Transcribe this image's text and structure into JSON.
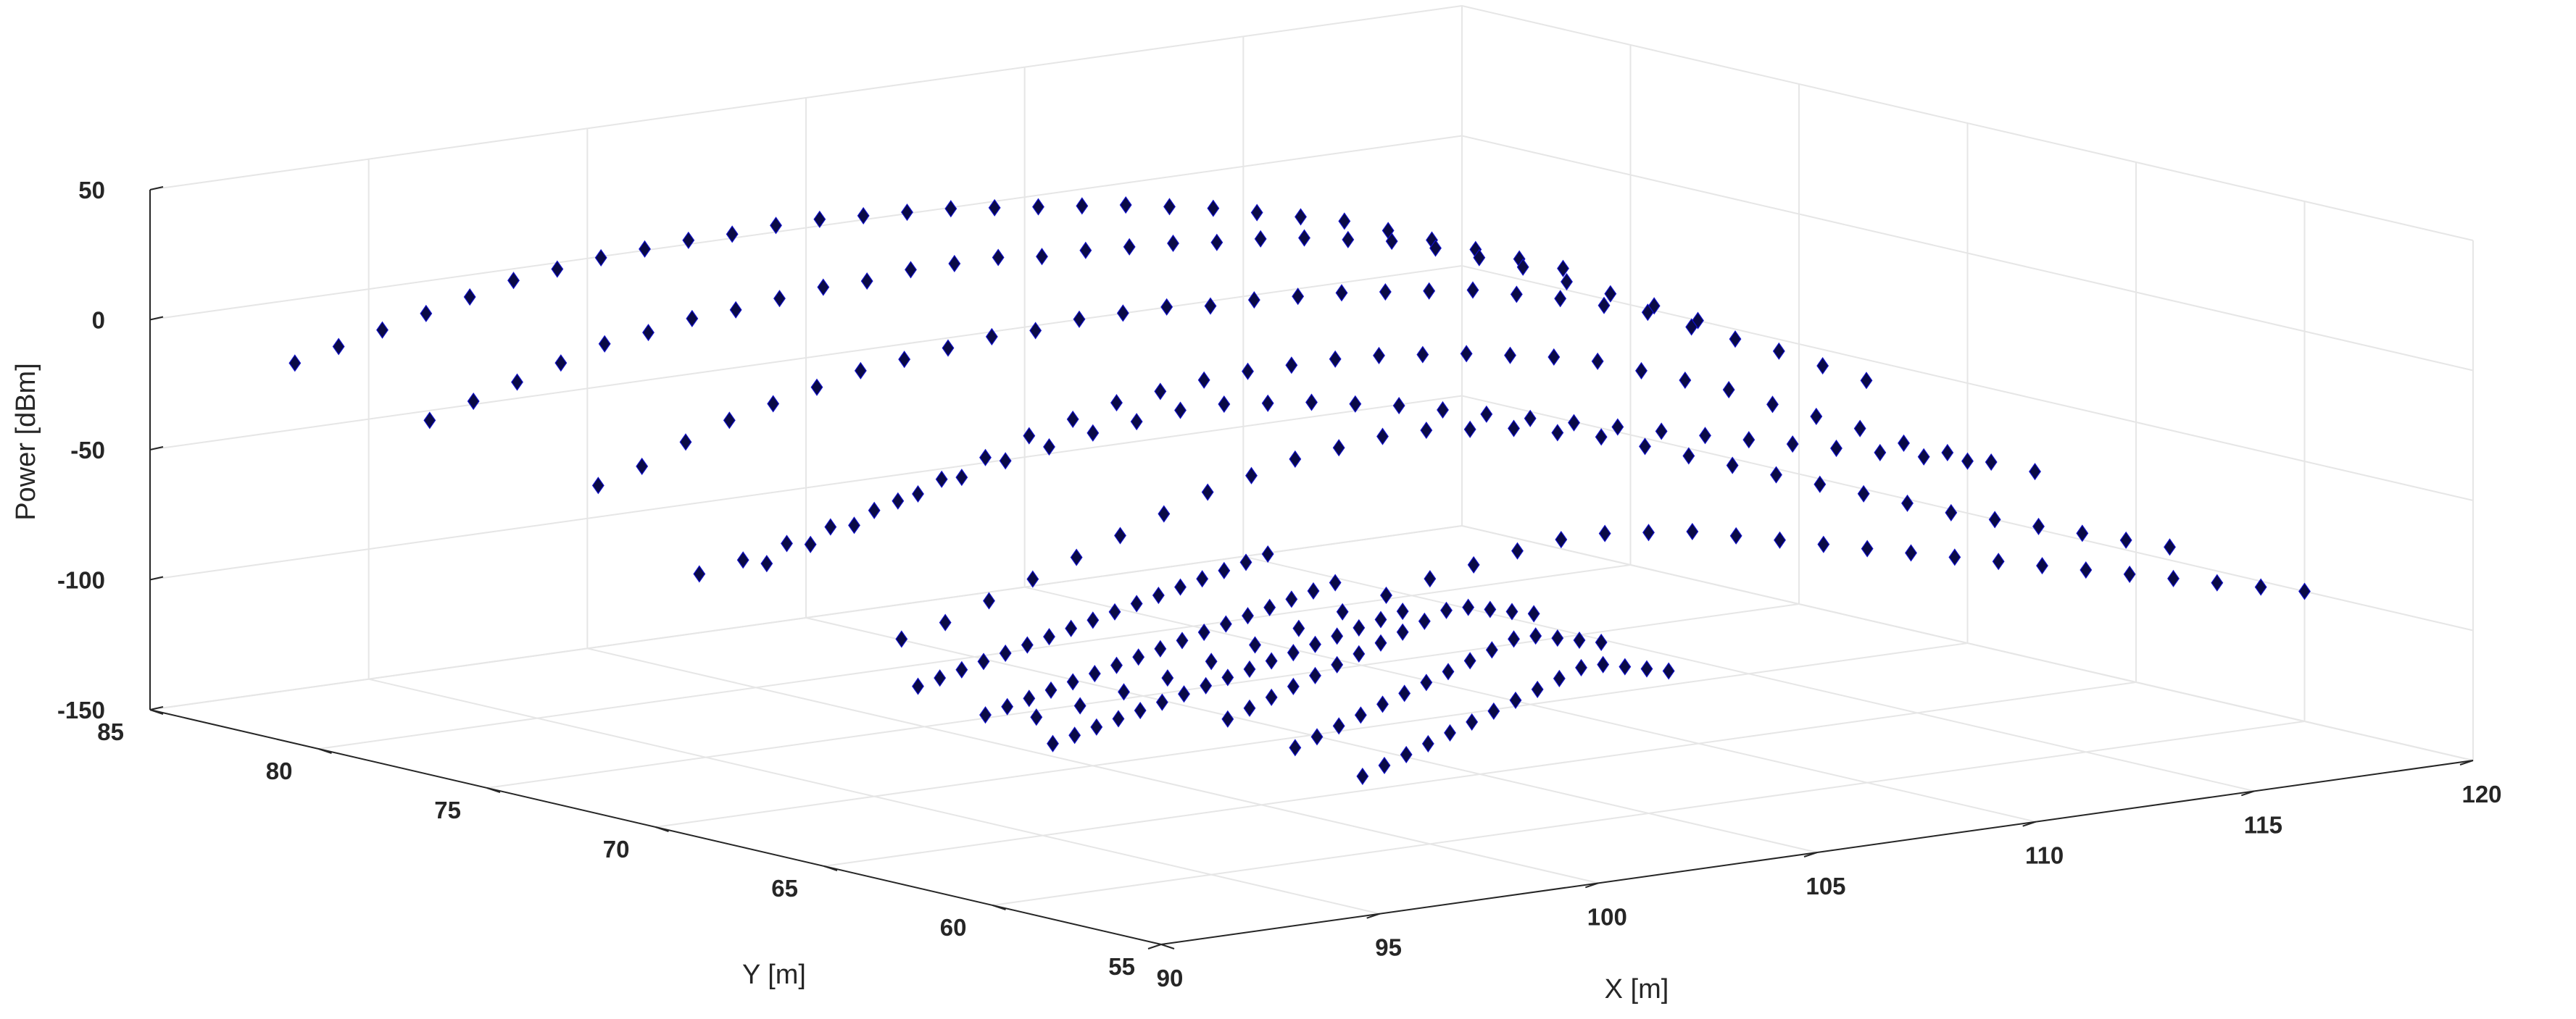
{
  "chart_data": {
    "type": "scatter",
    "projection": "3d",
    "title": "",
    "xlabel": "X [m]",
    "ylabel": "Y [m]",
    "zlabel": "Power [dBm]",
    "xlim": [
      90,
      120
    ],
    "ylim": [
      55,
      85
    ],
    "zlim": [
      -150,
      50
    ],
    "xticks": [
      90,
      95,
      100,
      105,
      110,
      115,
      120
    ],
    "yticks": [
      55,
      60,
      65,
      70,
      75,
      80,
      85
    ],
    "zticks": [
      -150,
      -100,
      -50,
      0,
      50
    ],
    "grid": true,
    "legend": "none",
    "marker": "diamond",
    "marker_color": "#0a0a46",
    "marker_edge_color": "#1010c8",
    "series": [
      {
        "x": [
          91,
          92,
          93,
          94,
          95,
          96,
          97,
          98,
          99,
          100,
          101,
          102,
          103,
          104,
          105,
          106,
          107,
          108,
          109,
          110,
          111,
          112,
          113,
          114,
          115,
          116,
          117,
          118,
          119,
          120,
          91,
          92,
          93,
          94,
          95,
          96,
          97,
          98,
          99,
          100,
          101,
          102,
          103,
          104,
          105,
          106,
          107,
          108,
          109,
          110,
          111,
          112,
          113,
          114,
          115,
          116,
          117,
          118,
          119,
          120,
          91,
          92,
          93,
          94,
          95,
          96,
          97,
          98,
          99,
          100,
          101,
          102,
          103,
          104,
          105,
          106,
          107,
          108,
          109,
          110,
          111,
          112,
          113,
          114,
          115,
          116,
          117,
          118,
          119,
          120,
          91,
          92,
          93,
          94,
          95,
          96,
          97,
          98,
          99,
          100,
          101,
          102,
          103,
          104,
          105,
          106,
          107,
          108,
          109,
          110,
          111,
          112,
          113,
          114,
          115,
          116,
          117,
          118,
          119,
          120,
          91,
          92,
          93,
          94,
          95,
          96,
          97,
          98,
          99,
          100,
          101,
          102,
          103,
          104,
          105,
          106,
          107,
          108,
          109,
          110,
          111,
          112,
          113,
          114,
          115,
          116,
          117,
          118,
          119,
          120,
          91,
          92,
          93,
          94,
          95,
          96,
          97,
          98,
          99,
          100,
          101,
          102,
          103,
          104,
          105,
          106,
          107,
          108,
          109,
          110,
          111,
          112,
          113,
          114,
          115,
          116,
          117,
          118,
          119,
          120,
          91,
          92,
          93,
          94,
          95,
          96,
          97,
          98,
          99,
          100,
          101,
          102,
          103,
          104,
          105,
          106,
          107,
          108,
          109,
          110,
          111,
          112,
          113,
          114,
          115,
          116,
          117,
          118,
          119,
          120,
          96,
          96.5,
          97,
          97.5,
          98,
          98.5,
          99,
          99.5,
          100,
          100.5,
          101,
          101.5,
          102,
          102.5,
          103,
          103.5,
          104,
          96,
          96.5,
          97,
          97.5,
          98,
          98.5,
          99,
          99.5,
          100,
          100.5,
          101,
          101.5,
          102,
          102.5,
          103,
          103.5,
          104,
          96,
          96.5,
          97,
          97.5,
          98,
          98.5,
          99,
          99.5,
          100,
          100.5,
          101,
          101.5,
          102,
          102.5,
          103,
          103.5,
          104,
          100,
          100.5,
          101,
          101.5,
          102,
          102.5,
          103,
          103.5,
          104,
          104.5,
          105,
          105.5,
          106,
          106.5,
          107,
          100,
          100.5,
          101,
          101.5,
          102,
          102.5,
          103,
          103.5,
          104,
          104.5,
          105,
          105.5,
          106,
          106.5,
          107,
          100,
          100.5,
          101,
          101.5,
          102,
          102.5,
          103,
          103.5,
          104,
          104.5,
          105,
          105.5,
          106,
          106.5,
          107
        ],
        "y": [
          78,
          78,
          78,
          78,
          78,
          78,
          78,
          78,
          78,
          78,
          78,
          78,
          78,
          78,
          78,
          78,
          78,
          78,
          78,
          78,
          78,
          78,
          78,
          78,
          78,
          78,
          78,
          78,
          78,
          78,
          73,
          73,
          73,
          73,
          73,
          73,
          73,
          73,
          73,
          73,
          73,
          73,
          73,
          73,
          73,
          73,
          73,
          73,
          73,
          73,
          73,
          73,
          73,
          73,
          73,
          73,
          73,
          73,
          73,
          73,
          68,
          68,
          68,
          68,
          68,
          68,
          68,
          68,
          68,
          68,
          68,
          68,
          68,
          68,
          68,
          68,
          68,
          68,
          68,
          68,
          68,
          68,
          68,
          68,
          68,
          68,
          68,
          68,
          68,
          68,
          64,
          64,
          64,
          64,
          64,
          64,
          64,
          64,
          64,
          64,
          64,
          64,
          64,
          64,
          64,
          64,
          64,
          64,
          64,
          64,
          64,
          64,
          64,
          64,
          64,
          64,
          64,
          64,
          64,
          64,
          82,
          82,
          82,
          82,
          82,
          82,
          82,
          82,
          82,
          82,
          82,
          82,
          82,
          82,
          82,
          82,
          82,
          82,
          82,
          82,
          82,
          82,
          82,
          82,
          82,
          82,
          82,
          82,
          82,
          82,
          70,
          70,
          70,
          70,
          70,
          70,
          70,
          70,
          70,
          70,
          70,
          70,
          70,
          70,
          70,
          70,
          70,
          70,
          70,
          70,
          70,
          70,
          70,
          70,
          70,
          70,
          70,
          70,
          70,
          70,
          60,
          60,
          60,
          60,
          60,
          60,
          60,
          60,
          60,
          60,
          60,
          60,
          60,
          60,
          60,
          60,
          60,
          60,
          60,
          60,
          60,
          60,
          60,
          60,
          60,
          60,
          60,
          60,
          60,
          60,
          70,
          70,
          70,
          70,
          70,
          70,
          70,
          70,
          70,
          70,
          70,
          70,
          70,
          70,
          70,
          70,
          70,
          68,
          68,
          68,
          68,
          68,
          68,
          68,
          68,
          68,
          68,
          68,
          68,
          68,
          68,
          68,
          68,
          68,
          66,
          66,
          66,
          66,
          66,
          66,
          66,
          66,
          66,
          66,
          66,
          66,
          66,
          66,
          66,
          66,
          66,
          66,
          66,
          66,
          66,
          66,
          66,
          66,
          66,
          66,
          66,
          66,
          66,
          66,
          66,
          66,
          64,
          64,
          64,
          64,
          64,
          64,
          64,
          64,
          64,
          64,
          64,
          64,
          64,
          64,
          64,
          62,
          62,
          62,
          62,
          62,
          62,
          62,
          62,
          62,
          62,
          62,
          62,
          62,
          62,
          62
        ],
        "z": [
          -20,
          -15,
          -10,
          -5,
          0,
          2,
          5,
          6,
          8,
          10,
          10,
          12,
          12,
          12,
          10,
          10,
          9,
          8,
          6,
          5,
          3,
          0,
          -3,
          -8,
          -14,
          -20,
          -28,
          -35,
          -42,
          -50,
          -30,
          -25,
          -18,
          -12,
          -8,
          -4,
          0,
          2,
          4,
          6,
          6,
          8,
          8,
          8,
          6,
          6,
          5,
          4,
          2,
          0,
          -2,
          -6,
          -10,
          -15,
          -20,
          -28,
          -35,
          -42,
          -50,
          -58,
          -45,
          -40,
          -35,
          -28,
          -22,
          -16,
          -10,
          -6,
          -2,
          0,
          2,
          3,
          3,
          3,
          2,
          0,
          -2,
          -5,
          -8,
          -12,
          -18,
          -24,
          -30,
          -38,
          -45,
          -52,
          -60,
          -66,
          -72,
          -78,
          -62,
          -58,
          -52,
          -46,
          -40,
          -34,
          -28,
          -22,
          -18,
          -14,
          -12,
          -10,
          -10,
          -12,
          -14,
          -18,
          -22,
          -28,
          -34,
          -40,
          -46,
          -52,
          -58,
          -64,
          -70,
          -75,
          -80,
          -85,
          -90,
          -95,
          -10,
          -6,
          -2,
          2,
          6,
          10,
          12,
          14,
          15,
          16,
          16,
          17,
          17,
          16,
          15,
          14,
          12,
          10,
          8,
          6,
          3,
          0,
          -4,
          -8,
          -12,
          -18,
          -24,
          -30,
          -36,
          -42,
          -55,
          -52,
          -48,
          -44,
          -40,
          -36,
          -32,
          -28,
          -25,
          -22,
          -20,
          -18,
          -18,
          -20,
          -22,
          -25,
          -28,
          -32,
          -36,
          -40,
          -44,
          -48,
          -52,
          -56,
          -60,
          -64,
          -68,
          -72,
          -76,
          -80,
          -80,
          -78,
          -75,
          -72,
          -68,
          -64,
          -60,
          -56,
          -52,
          -48,
          -45,
          -42,
          -40,
          -40,
          -42,
          -44,
          -48,
          -52,
          -56,
          -60,
          -64,
          -68,
          -72,
          -76,
          -80,
          -84,
          -88,
          -92,
          -96,
          -100,
          -110,
          -108,
          -106,
          -104,
          -102,
          -100,
          -98,
          -96,
          -94,
          -92,
          -90,
          -88,
          -86,
          -84,
          -82,
          -80,
          -78,
          -115,
          -113,
          -111,
          -109,
          -107,
          -105,
          -103,
          -101,
          -99,
          -97,
          -95,
          -93,
          -91,
          -89,
          -87,
          -85,
          -83,
          -120,
          -118,
          -116,
          -114,
          -112,
          -110,
          -108,
          -106,
          -104,
          -102,
          -100,
          -98,
          -96,
          -94,
          -92,
          -90,
          -88,
          -120,
          -117,
          -114,
          -111,
          -108,
          -105,
          -102,
          -99,
          -96,
          -93,
          -90,
          -90,
          -92,
          -94,
          -96,
          -125,
          -122,
          -119,
          -116,
          -113,
          -110,
          -107,
          -104,
          -101,
          -98,
          -95,
          -95,
          -97,
          -99,
          -101,
          -130,
          -127,
          -124,
          -121,
          -118,
          -115,
          -112,
          -109,
          -106,
          -103,
          -100,
          -100,
          -102,
          -104,
          -106
        ]
      }
    ]
  }
}
